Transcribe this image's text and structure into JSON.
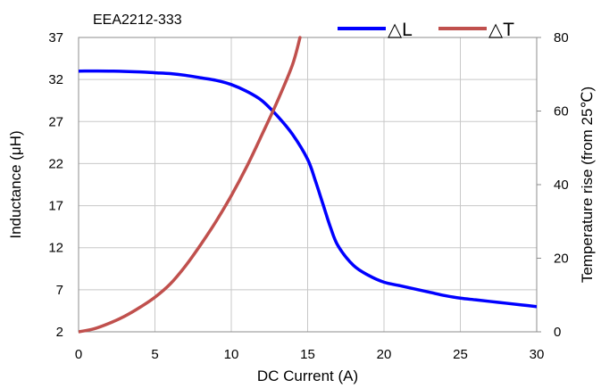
{
  "chart_data": {
    "type": "line",
    "title": "EEA2212-333",
    "xlabel": "DC Current (A)",
    "ylabel_left": "Inductance (μH)",
    "ylabel_right": "Temperature rise (from 25℃)",
    "xlim": [
      0,
      30
    ],
    "ylim_left": [
      2,
      37
    ],
    "ylim_right": [
      0,
      80
    ],
    "x_ticks": [
      0,
      5,
      10,
      15,
      20,
      25,
      30
    ],
    "y_left_ticks": [
      2,
      7,
      12,
      17,
      22,
      27,
      32,
      37
    ],
    "y_right_ticks": [
      0,
      20,
      40,
      60,
      80
    ],
    "grid": true,
    "legend_position": "top-right",
    "series": [
      {
        "name": "△L",
        "axis": "left",
        "color": "#0000ff",
        "x": [
          0,
          2,
          4,
          5,
          6,
          7,
          8,
          9,
          10,
          11,
          12,
          13,
          14,
          15,
          15.5,
          16,
          16.5,
          17,
          18,
          19,
          20,
          21,
          22,
          23,
          24,
          25,
          26,
          27,
          28,
          29,
          30
        ],
        "y": [
          33.0,
          33.0,
          32.9,
          32.8,
          32.7,
          32.5,
          32.2,
          31.9,
          31.4,
          30.6,
          29.5,
          27.7,
          25.5,
          22.5,
          20.0,
          17.2,
          14.4,
          12.2,
          9.9,
          8.7,
          7.9,
          7.5,
          7.1,
          6.7,
          6.3,
          6.0,
          5.8,
          5.6,
          5.4,
          5.2,
          5.0
        ]
      },
      {
        "name": "△T",
        "axis": "right",
        "color": "#c0504d",
        "x": [
          0,
          1,
          2,
          3,
          4,
          5,
          6,
          7,
          8,
          9,
          10,
          11,
          12,
          13,
          14,
          14.5
        ],
        "y": [
          0,
          0.8,
          2.3,
          4.2,
          6.6,
          9.4,
          13.0,
          17.9,
          23.7,
          30.0,
          37.0,
          44.8,
          53.5,
          62.5,
          72.5,
          80.0
        ]
      }
    ]
  }
}
